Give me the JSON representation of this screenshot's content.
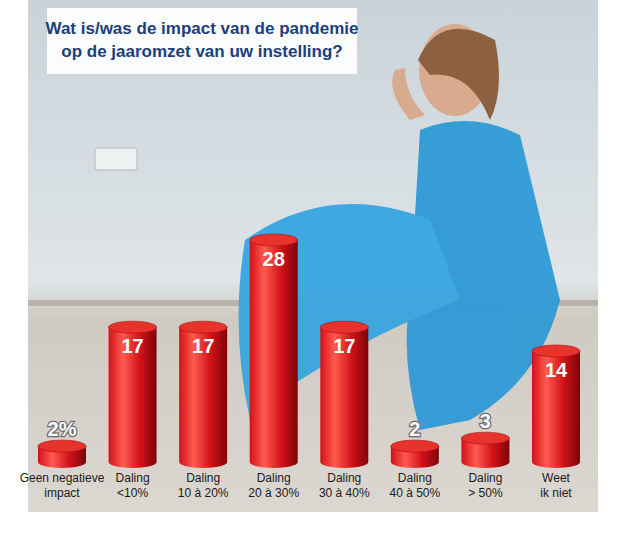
{
  "chart_data": {
    "type": "bar",
    "title": "Wat is/was de impact van de pandemie\nop de jaaromzet van uw instelling?",
    "categories": [
      "Geen negatieve\nimpact",
      "Daling\n<10%",
      "Daling\n10 à 20%",
      "Daling\n20 à 30%",
      "Daling\n30 à 40%",
      "Daling\n40 à 50%",
      "Daling\n> 50%",
      "Weet\nik niet"
    ],
    "values": [
      2,
      17,
      17,
      28,
      17,
      2,
      3,
      14
    ],
    "value_labels": [
      "2%",
      "17",
      "17",
      "28",
      "17",
      "2",
      "3",
      "14"
    ],
    "color": "#d3121a",
    "data_labels": true,
    "tick_labels": "x",
    "grid": false
  }
}
